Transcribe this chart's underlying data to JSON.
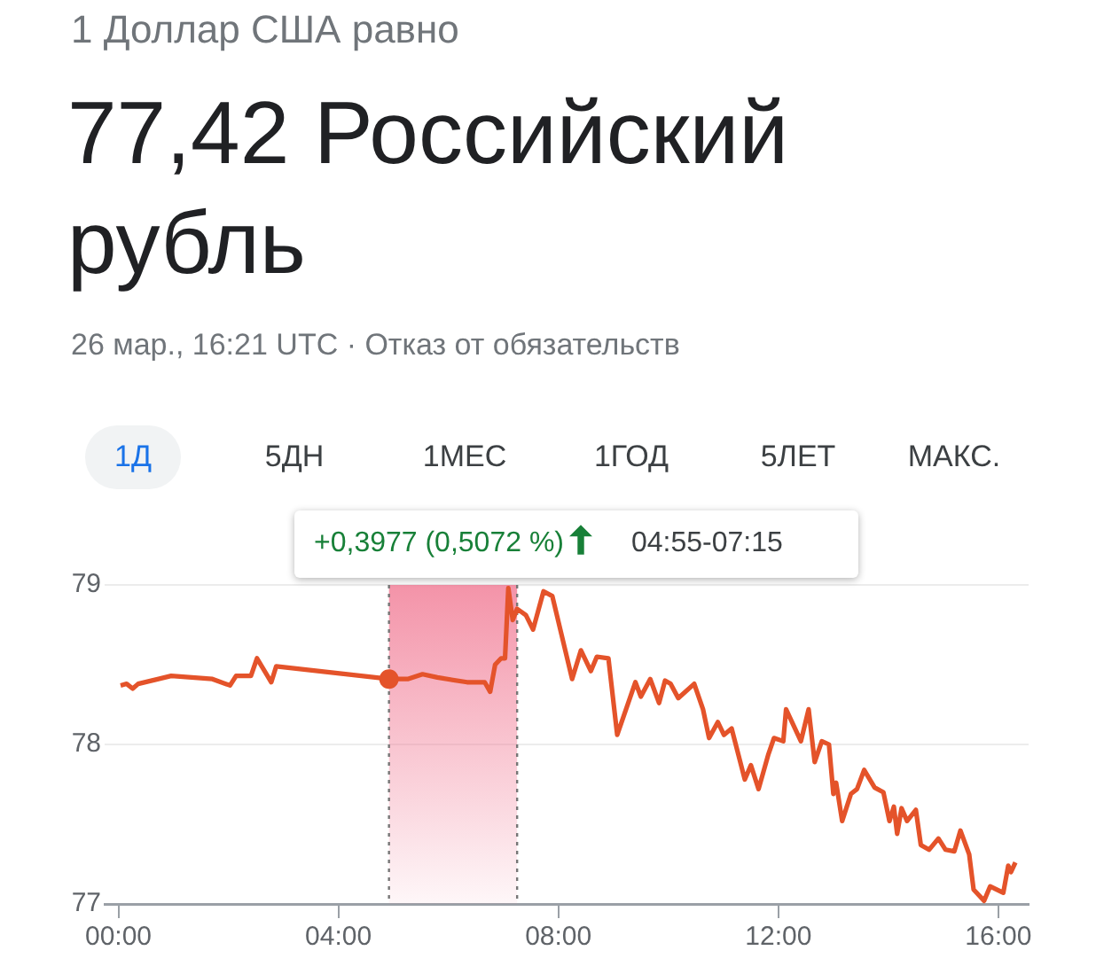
{
  "chart_data": {
    "type": "line",
    "title": "77,42 Российский рубль",
    "subtitle": "1 Доллар США равно",
    "annotations": [
      "26 мар., 16:21 UTC · Отказ от обязательств",
      "1Д",
      "5ДН",
      "1МЕС",
      "1ГОД",
      "5ЛЕТ",
      "МАКС.",
      "+0,3977 (0,5072 %)",
      "04:55-07:15"
    ],
    "x": [
      0.04,
      0.15,
      0.26,
      0.36,
      0.96,
      1.71,
      2.03,
      2.14,
      2.41,
      2.52,
      2.78,
      2.87,
      4.92,
      5.26,
      5.53,
      5.8,
      6.34,
      6.66,
      6.76,
      6.85,
      6.96,
      7.03,
      7.09,
      7.17,
      7.25,
      7.41,
      7.54,
      7.73,
      7.89,
      8.25,
      8.41,
      8.59,
      8.7,
      8.91,
      9.07,
      9.4,
      9.5,
      9.67,
      9.83,
      9.94,
      10.04,
      10.18,
      10.47,
      10.63,
      10.74,
      10.9,
      11.01,
      11.15,
      11.39,
      11.5,
      11.64,
      11.82,
      11.92,
      12.09,
      12.14,
      12.41,
      12.55,
      12.66,
      12.79,
      12.92,
      13.0,
      13.05,
      13.16,
      13.32,
      13.43,
      13.56,
      13.75,
      13.91,
      14.02,
      14.1,
      14.16,
      14.24,
      14.34,
      14.5,
      14.59,
      14.74,
      14.91,
      15.04,
      15.2,
      15.31,
      15.47,
      15.55,
      15.74,
      15.85,
      16.09,
      16.18,
      16.23,
      16.31
    ],
    "series": [
      {
        "color": "#e4532a",
        "values": [
          78.37,
          78.38,
          78.35,
          78.38,
          78.43,
          78.41,
          78.37,
          78.43,
          78.43,
          78.54,
          78.39,
          78.49,
          78.41,
          78.41,
          78.44,
          78.42,
          78.39,
          78.39,
          78.33,
          78.5,
          78.54,
          78.54,
          78.98,
          78.78,
          78.85,
          78.81,
          78.72,
          78.96,
          78.93,
          78.41,
          78.59,
          78.46,
          78.55,
          78.54,
          78.06,
          78.39,
          78.3,
          78.41,
          78.26,
          78.4,
          78.38,
          78.29,
          78.38,
          78.22,
          78.04,
          78.14,
          78.06,
          78.1,
          77.78,
          77.87,
          77.72,
          77.94,
          78.04,
          78.02,
          78.22,
          78.02,
          78.22,
          77.89,
          78.02,
          78.0,
          77.69,
          77.76,
          77.52,
          77.69,
          77.72,
          77.84,
          77.73,
          77.7,
          77.52,
          77.61,
          77.44,
          77.6,
          77.52,
          77.59,
          77.37,
          77.34,
          77.41,
          77.34,
          77.33,
          77.46,
          77.31,
          77.09,
          77.02,
          77.11,
          77.07,
          77.24,
          77.2,
          77.26
        ]
      }
    ],
    "bands": [
      {
        "axis": "x",
        "from": 4.92,
        "to": 7.25,
        "color": "#f17b95"
      }
    ],
    "ref_lines": [
      {
        "axis": "x",
        "value": 4.92,
        "color": "#777777",
        "line_style": "dotted"
      },
      {
        "axis": "x",
        "value": 7.25,
        "color": "#777777",
        "line_style": "dotted"
      }
    ],
    "xlim": [
      -0.25,
      16.55
    ],
    "ylim": [
      77,
      79
    ],
    "xticks": [
      {
        "value": 0,
        "label": "00:00"
      },
      {
        "value": 4,
        "label": "04:00"
      },
      {
        "value": 8,
        "label": "08:00"
      },
      {
        "value": 12,
        "label": "12:00"
      },
      {
        "value": 16,
        "label": "16:00"
      }
    ],
    "yticks": [
      77,
      78,
      79
    ],
    "grid": "y",
    "legend": false,
    "marker": "none",
    "line_style": "solid"
  }
}
